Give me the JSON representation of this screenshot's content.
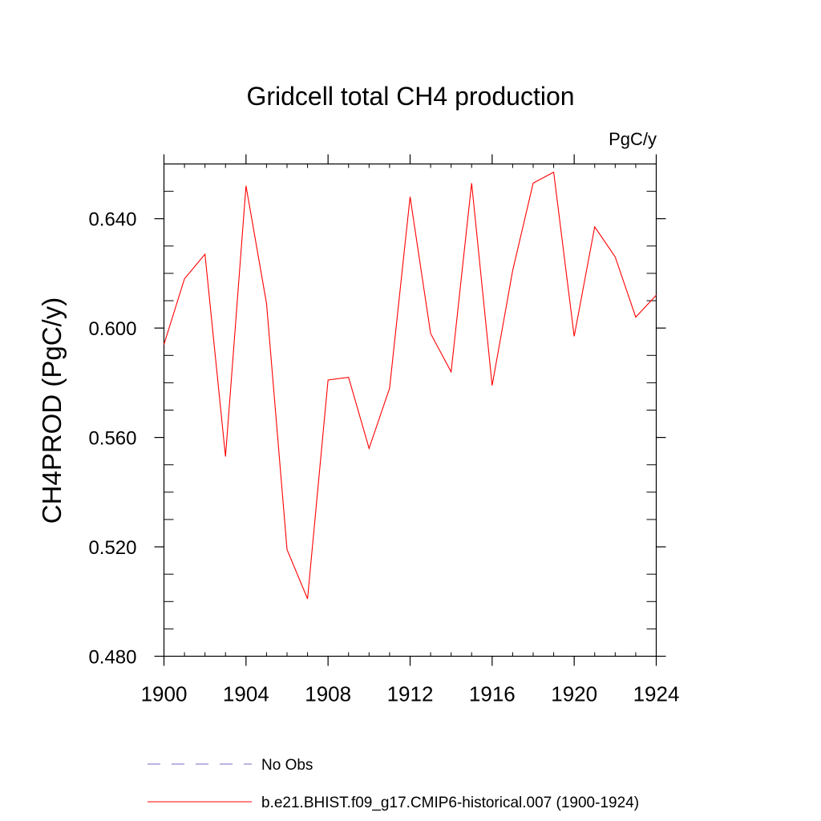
{
  "chart_data": {
    "type": "line",
    "title": "Gridcell total CH4 production",
    "units_label": "PgC/y",
    "xlabel": "",
    "ylabel": "CH4PROD  (PgC/y)",
    "xlim": [
      1900,
      1924
    ],
    "ylim": [
      0.48,
      0.66
    ],
    "x_ticks": [
      1900,
      1904,
      1908,
      1912,
      1916,
      1920,
      1924
    ],
    "x_tick_labels": [
      "1900",
      "1904",
      "1908",
      "1912",
      "1916",
      "1920",
      "1924"
    ],
    "y_ticks": [
      0.48,
      0.52,
      0.56,
      0.6,
      0.64
    ],
    "y_tick_labels": [
      "0.480",
      "0.520",
      "0.560",
      "0.600",
      "0.640"
    ],
    "grid": false,
    "series": [
      {
        "name": "b.e21.BHIST.f09_g17.CMIP6-historical.007 (1900-1924)",
        "color": "#ff0000",
        "x": [
          1900,
          1901,
          1902,
          1903,
          1904,
          1905,
          1906,
          1907,
          1908,
          1909,
          1910,
          1911,
          1912,
          1913,
          1914,
          1915,
          1916,
          1917,
          1918,
          1919,
          1920,
          1921,
          1922,
          1923,
          1924
        ],
        "values": [
          0.594,
          0.618,
          0.627,
          0.553,
          0.652,
          0.609,
          0.519,
          0.501,
          0.581,
          0.582,
          0.556,
          0.578,
          0.648,
          0.598,
          0.584,
          0.653,
          0.579,
          0.621,
          0.653,
          0.657,
          0.597,
          0.637,
          0.626,
          0.604,
          0.612
        ]
      }
    ],
    "legend": [
      {
        "label": "No Obs",
        "style": "dashed",
        "color": "#7b68c8"
      },
      {
        "label": "b.e21.BHIST.f09_g17.CMIP6-historical.007 (1900-1924)",
        "style": "solid",
        "color": "#ff0000"
      }
    ]
  }
}
